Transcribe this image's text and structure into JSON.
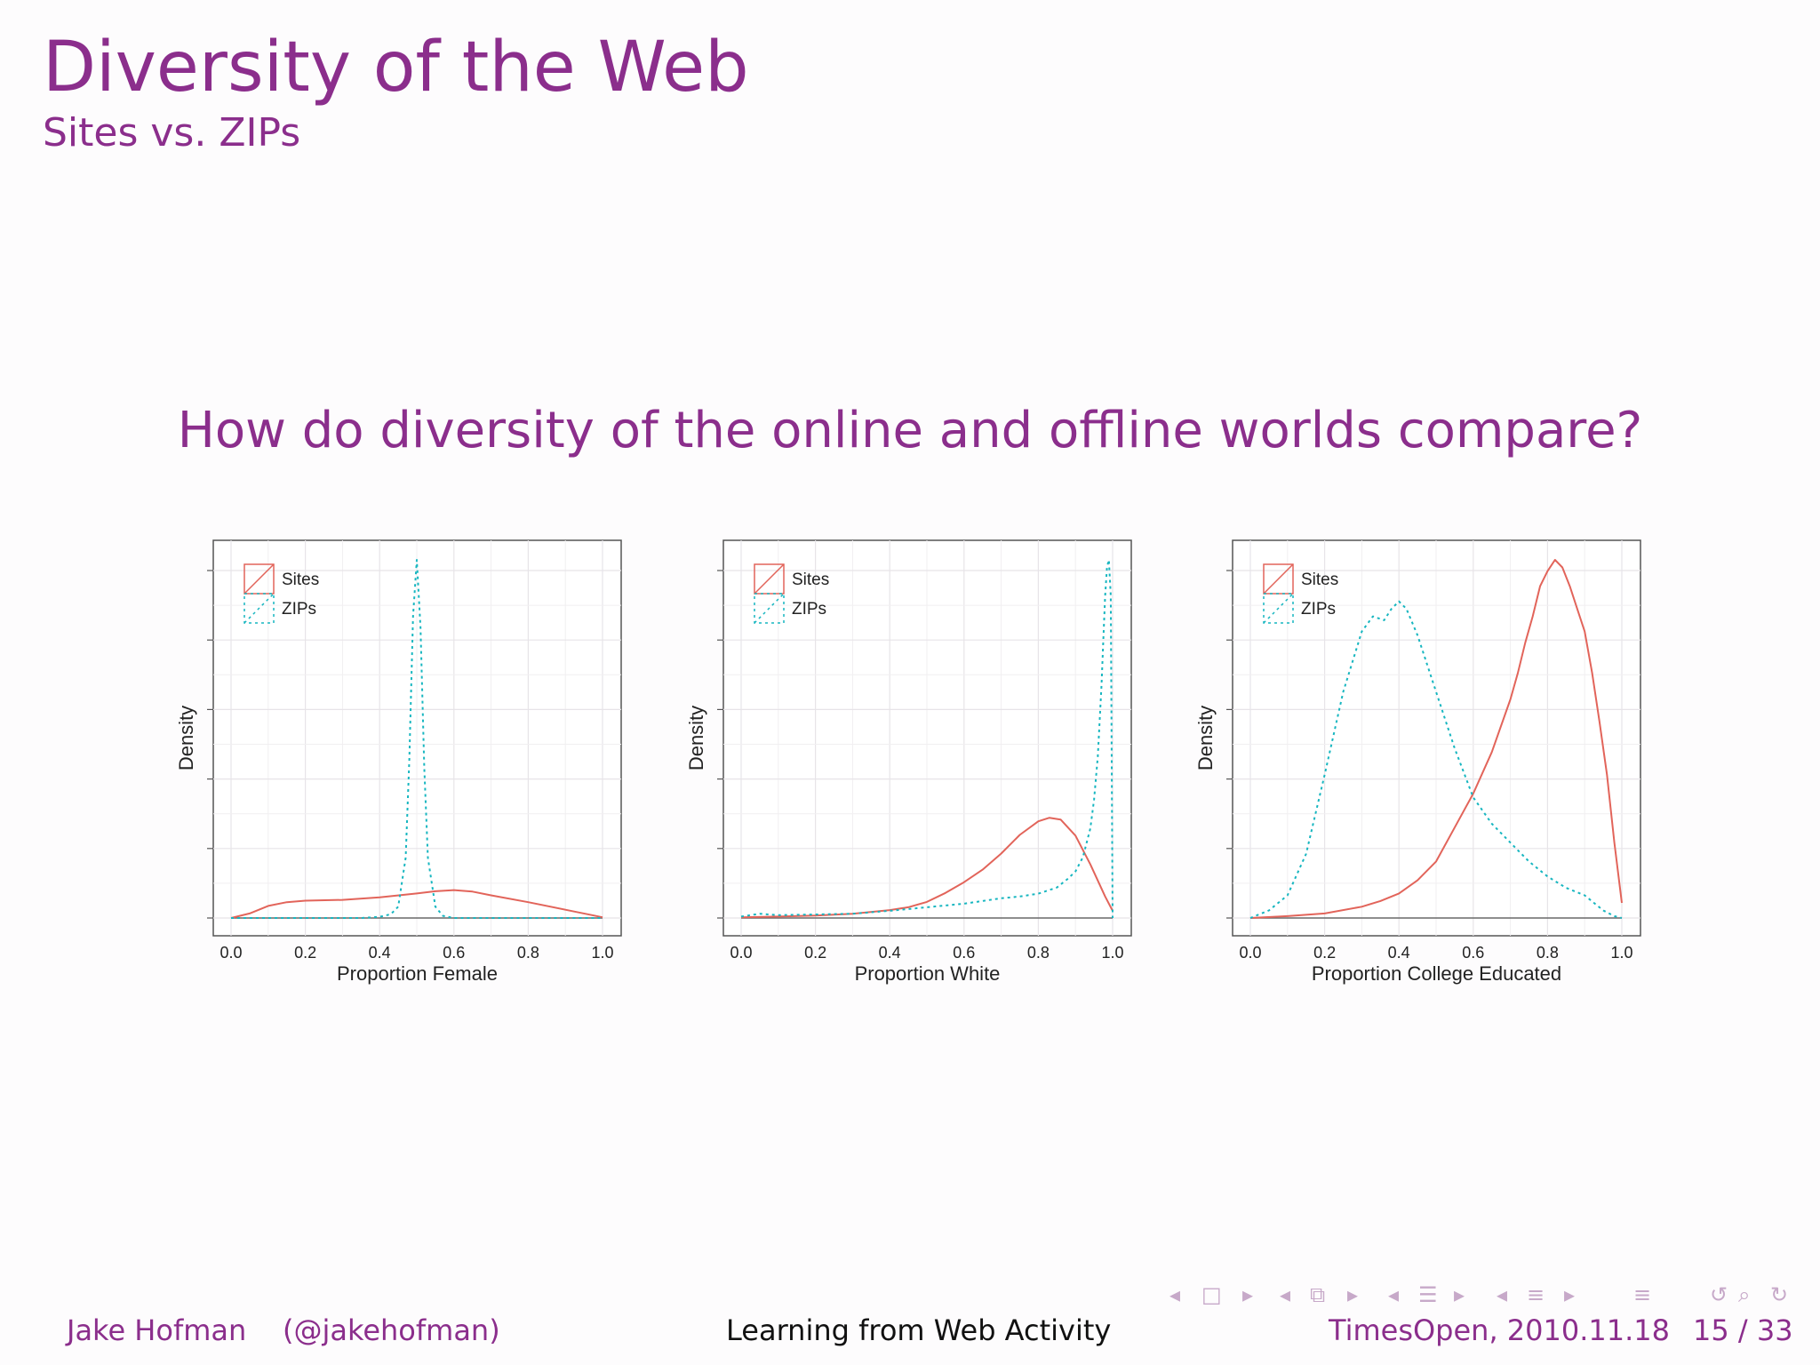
{
  "slide": {
    "title": "Diversity of the Web",
    "subtitle": "Sites vs. ZIPs",
    "question": "How do diversity of the online and offline worlds compare?"
  },
  "footer": {
    "author": "Jake Hofman    (@jakehofman)",
    "talk": "Learning from Web Activity",
    "date": "TimesOpen, 2010.11.18",
    "page": "15 / 33"
  },
  "nav_icons": [
    "arrow-left-icon",
    "frame-icon",
    "arrow-right-icon",
    "arrow-left-icon",
    "subsection-icon",
    "arrow-right-icon",
    "arrow-left-icon",
    "section-icon",
    "arrow-right-icon",
    "arrow-left-icon",
    "align-icon",
    "arrow-right-icon",
    "align-icon",
    "undo-icon",
    "search-icon",
    "redo-icon"
  ],
  "colors": {
    "accent": "#8b2e8c",
    "sites": "#e2645a",
    "zips": "#17b6c0"
  },
  "chart_data": [
    {
      "type": "line",
      "xlabel": "Proportion Female",
      "ylabel": "Density",
      "xlim": [
        0,
        1
      ],
      "xticks": [
        "0.0",
        "0.2",
        "0.4",
        "0.6",
        "0.8",
        "1.0"
      ],
      "legend": "top-left",
      "grid": true,
      "series": [
        {
          "name": "Sites",
          "style": "solid",
          "color": "#e2645a",
          "x": [
            0.0,
            0.05,
            0.1,
            0.15,
            0.2,
            0.3,
            0.4,
            0.5,
            0.55,
            0.6,
            0.65,
            0.7,
            0.8,
            0.9,
            1.0
          ],
          "y": [
            0.0,
            0.012,
            0.032,
            0.042,
            0.046,
            0.048,
            0.055,
            0.065,
            0.071,
            0.074,
            0.07,
            0.06,
            0.042,
            0.022,
            0.002
          ]
        },
        {
          "name": "ZIPs",
          "style": "dotted",
          "color": "#17b6c0",
          "x": [
            0.0,
            0.35,
            0.4,
            0.43,
            0.45,
            0.47,
            0.48,
            0.49,
            0.5,
            0.51,
            0.52,
            0.53,
            0.55,
            0.57,
            0.6,
            0.7,
            1.0
          ],
          "y": [
            0.0,
            0.0,
            0.003,
            0.01,
            0.03,
            0.16,
            0.42,
            0.8,
            0.95,
            0.77,
            0.4,
            0.16,
            0.03,
            0.006,
            0.0,
            0.0,
            0.0
          ]
        }
      ]
    },
    {
      "type": "line",
      "xlabel": "Proportion White",
      "ylabel": "Density",
      "xlim": [
        0,
        1
      ],
      "xticks": [
        "0.0",
        "0.2",
        "0.4",
        "0.6",
        "0.8",
        "1.0"
      ],
      "legend": "top-left",
      "grid": true,
      "series": [
        {
          "name": "Sites",
          "style": "solid",
          "color": "#e2645a",
          "x": [
            0.0,
            0.1,
            0.2,
            0.3,
            0.4,
            0.45,
            0.5,
            0.55,
            0.6,
            0.65,
            0.7,
            0.75,
            0.8,
            0.83,
            0.86,
            0.9,
            0.94,
            0.98,
            1.0
          ],
          "y": [
            0.002,
            0.004,
            0.007,
            0.012,
            0.022,
            0.03,
            0.045,
            0.07,
            0.1,
            0.135,
            0.18,
            0.232,
            0.27,
            0.28,
            0.275,
            0.23,
            0.15,
            0.06,
            0.02
          ]
        },
        {
          "name": "ZIPs",
          "style": "dotted",
          "color": "#17b6c0",
          "x": [
            0.0,
            0.05,
            0.1,
            0.2,
            0.3,
            0.4,
            0.5,
            0.6,
            0.7,
            0.75,
            0.8,
            0.85,
            0.88,
            0.9,
            0.92,
            0.94,
            0.95,
            0.96,
            0.97,
            0.975,
            0.98,
            0.985,
            0.99,
            0.995,
            1.0
          ],
          "y": [
            0.004,
            0.012,
            0.008,
            0.01,
            0.012,
            0.02,
            0.03,
            0.04,
            0.055,
            0.06,
            0.068,
            0.085,
            0.11,
            0.13,
            0.17,
            0.25,
            0.33,
            0.45,
            0.65,
            0.78,
            0.9,
            0.98,
            1.0,
            0.9,
            0.0
          ]
        }
      ]
    },
    {
      "type": "line",
      "xlabel": "Proportion College Educated",
      "ylabel": "Density",
      "xlim": [
        0,
        1
      ],
      "xticks": [
        "0.0",
        "0.2",
        "0.4",
        "0.6",
        "0.8",
        "1.0"
      ],
      "legend": "top-left",
      "grid": true,
      "series": [
        {
          "name": "Sites",
          "style": "solid",
          "color": "#e2645a",
          "x": [
            0.0,
            0.1,
            0.2,
            0.3,
            0.35,
            0.4,
            0.45,
            0.5,
            0.55,
            0.6,
            0.65,
            0.7,
            0.72,
            0.74,
            0.76,
            0.78,
            0.8,
            0.82,
            0.84,
            0.86,
            0.88,
            0.9,
            0.92,
            0.94,
            0.96,
            0.98,
            1.0
          ],
          "y": [
            0.0,
            0.005,
            0.012,
            0.03,
            0.045,
            0.065,
            0.1,
            0.15,
            0.24,
            0.33,
            0.44,
            0.58,
            0.65,
            0.73,
            0.8,
            0.88,
            0.92,
            0.95,
            0.93,
            0.88,
            0.82,
            0.76,
            0.65,
            0.52,
            0.38,
            0.2,
            0.04
          ]
        },
        {
          "name": "ZIPs",
          "style": "dotted",
          "color": "#17b6c0",
          "x": [
            0.0,
            0.05,
            0.1,
            0.15,
            0.2,
            0.25,
            0.3,
            0.33,
            0.36,
            0.38,
            0.4,
            0.42,
            0.45,
            0.5,
            0.55,
            0.6,
            0.65,
            0.7,
            0.75,
            0.8,
            0.85,
            0.9,
            0.95,
            0.98,
            1.0
          ],
          "y": [
            0.0,
            0.02,
            0.06,
            0.17,
            0.38,
            0.6,
            0.76,
            0.8,
            0.79,
            0.82,
            0.84,
            0.82,
            0.75,
            0.6,
            0.45,
            0.32,
            0.25,
            0.2,
            0.15,
            0.11,
            0.08,
            0.06,
            0.02,
            0.005,
            0.0
          ]
        }
      ]
    }
  ]
}
